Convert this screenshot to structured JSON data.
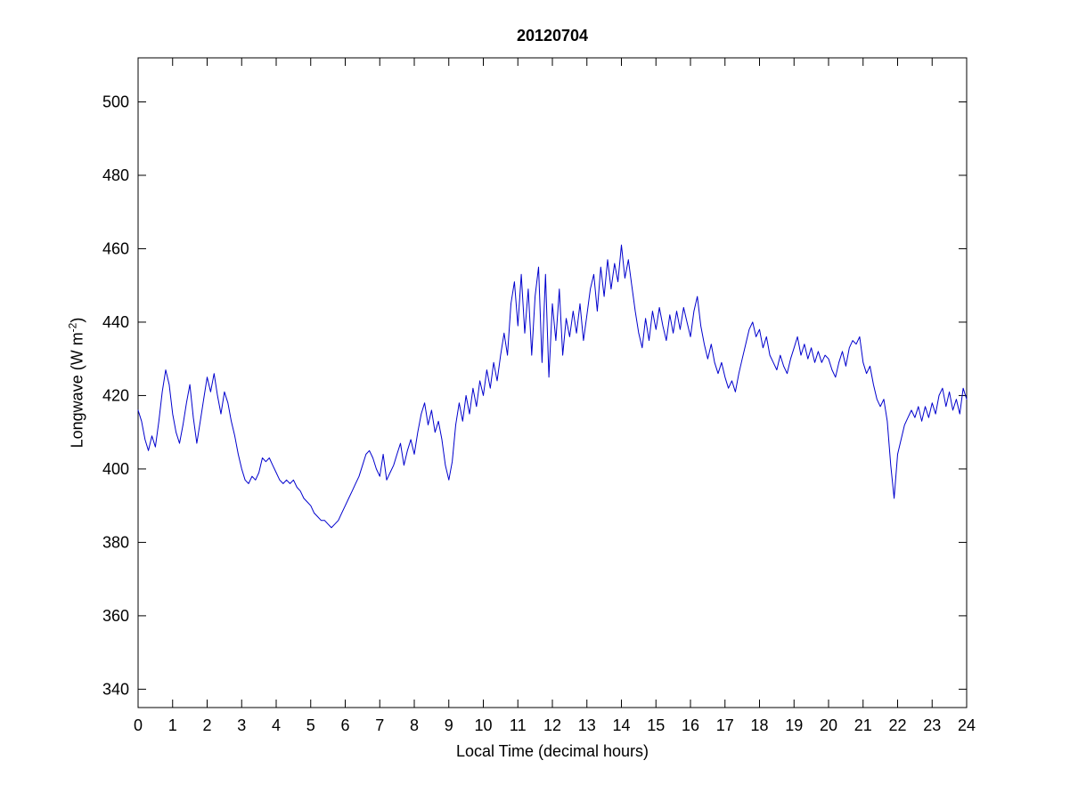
{
  "chart_data": {
    "type": "line",
    "title": "20120704",
    "xlabel": "Local Time (decimal hours)",
    "ylabel": "Longwave (W m^-2)",
    "ylabel_base": "Longwave (W m",
    "ylabel_sup": "-2",
    "ylabel_close": ")",
    "xlim": [
      0,
      24
    ],
    "ylim": [
      335,
      512
    ],
    "xticks": [
      0,
      1,
      2,
      3,
      4,
      5,
      6,
      7,
      8,
      9,
      10,
      11,
      12,
      13,
      14,
      15,
      16,
      17,
      18,
      19,
      20,
      21,
      22,
      23,
      24
    ],
    "yticks": [
      340,
      360,
      380,
      400,
      420,
      440,
      460,
      480,
      500
    ],
    "grid": false,
    "legend_position": "none",
    "line_color": "#0000CD",
    "axis_color": "#000000",
    "series": [
      {
        "name": "longwave",
        "x_start": 0,
        "x_step": 0.1,
        "values": [
          416,
          413,
          408,
          405,
          409,
          406,
          413,
          421,
          427,
          423,
          415,
          410,
          407,
          412,
          418,
          423,
          414,
          407,
          413,
          419,
          425,
          421,
          426,
          420,
          415,
          421,
          418,
          413,
          409,
          404,
          400,
          397,
          396,
          398,
          397,
          399,
          403,
          402,
          403,
          401,
          399,
          397,
          396,
          397,
          396,
          397,
          395,
          394,
          392,
          391,
          390,
          388,
          387,
          386,
          386,
          385,
          384,
          385,
          386,
          388,
          390,
          392,
          394,
          396,
          398,
          401,
          404,
          405,
          403,
          400,
          398,
          404,
          397,
          399,
          401,
          404,
          407,
          401,
          405,
          408,
          404,
          410,
          415,
          418,
          412,
          416,
          410,
          413,
          408,
          401,
          397,
          402,
          412,
          418,
          413,
          420,
          415,
          422,
          417,
          424,
          420,
          427,
          422,
          429,
          424,
          431,
          437,
          431,
          445,
          451,
          439,
          453,
          437,
          449,
          431,
          447,
          455,
          429,
          453,
          425,
          445,
          435,
          449,
          431,
          441,
          436,
          443,
          437,
          445,
          435,
          442,
          449,
          453,
          443,
          455,
          447,
          457,
          449,
          456,
          451,
          461,
          452,
          457,
          450,
          443,
          437,
          433,
          441,
          435,
          443,
          438,
          444,
          439,
          435,
          442,
          437,
          443,
          438,
          444,
          440,
          436,
          443,
          447,
          439,
          434,
          430,
          434,
          429,
          426,
          429,
          425,
          422,
          424,
          421,
          426,
          430,
          434,
          438,
          440,
          436,
          438,
          433,
          436,
          431,
          429,
          427,
          431,
          428,
          426,
          430,
          433,
          436,
          431,
          434,
          430,
          433,
          429,
          432,
          429,
          431,
          430,
          427,
          425,
          429,
          432,
          428,
          433,
          435,
          434,
          436,
          429,
          426,
          428,
          423,
          419,
          417,
          419,
          413,
          401,
          392,
          404,
          408,
          412,
          414,
          416,
          414,
          417,
          413,
          417,
          414,
          418,
          415,
          420,
          422,
          417,
          421,
          416,
          419,
          415,
          422,
          419
        ]
      }
    ]
  }
}
